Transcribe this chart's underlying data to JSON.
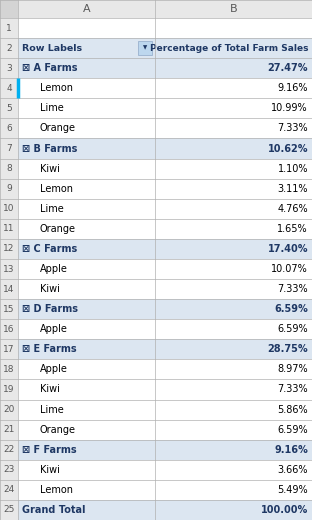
{
  "col_header_row": [
    "Row Labels",
    "Percentage of Total Farm Sales"
  ],
  "rows": [
    {
      "label": "⊠ A Farms",
      "value": "27.47%",
      "is_farm": true,
      "indent": false
    },
    {
      "label": "Lemon",
      "value": "9.16%",
      "is_farm": false,
      "indent": true
    },
    {
      "label": "Lime",
      "value": "10.99%",
      "is_farm": false,
      "indent": true
    },
    {
      "label": "Orange",
      "value": "7.33%",
      "is_farm": false,
      "indent": true
    },
    {
      "label": "⊠ B Farms",
      "value": "10.62%",
      "is_farm": true,
      "indent": false
    },
    {
      "label": "Kiwi",
      "value": "1.10%",
      "is_farm": false,
      "indent": true
    },
    {
      "label": "Lemon",
      "value": "3.11%",
      "is_farm": false,
      "indent": true
    },
    {
      "label": "Lime",
      "value": "4.76%",
      "is_farm": false,
      "indent": true
    },
    {
      "label": "Orange",
      "value": "1.65%",
      "is_farm": false,
      "indent": true
    },
    {
      "label": "⊠ C Farms",
      "value": "17.40%",
      "is_farm": true,
      "indent": false
    },
    {
      "label": "Apple",
      "value": "10.07%",
      "is_farm": false,
      "indent": true
    },
    {
      "label": "Kiwi",
      "value": "7.33%",
      "is_farm": false,
      "indent": true
    },
    {
      "label": "⊠ D Farms",
      "value": "6.59%",
      "is_farm": true,
      "indent": false
    },
    {
      "label": "Apple",
      "value": "6.59%",
      "is_farm": false,
      "indent": true
    },
    {
      "label": "⊠ E Farms",
      "value": "28.75%",
      "is_farm": true,
      "indent": false
    },
    {
      "label": "Apple",
      "value": "8.97%",
      "is_farm": false,
      "indent": true
    },
    {
      "label": "Kiwi",
      "value": "7.33%",
      "is_farm": false,
      "indent": true
    },
    {
      "label": "Lime",
      "value": "5.86%",
      "is_farm": false,
      "indent": true
    },
    {
      "label": "Orange",
      "value": "6.59%",
      "is_farm": false,
      "indent": true
    },
    {
      "label": "⊠ F Farms",
      "value": "9.16%",
      "is_farm": true,
      "indent": false
    },
    {
      "label": "Kiwi",
      "value": "3.66%",
      "is_farm": false,
      "indent": true
    },
    {
      "label": "Lemon",
      "value": "5.49%",
      "is_farm": false,
      "indent": true
    },
    {
      "label": "Grand Total",
      "value": "100.00%",
      "is_farm": false,
      "indent": false,
      "is_grand": true
    }
  ],
  "bg_col_header": "#dce6f1",
  "bg_farm": "#dce6f1",
  "bg_white": "#ffffff",
  "bg_row_num": "#e8e8e8",
  "bg_col_letter": "#e8e8e8",
  "bg_corner": "#d4d4d4",
  "text_farm_color": "#1f3864",
  "text_normal_color": "#000000",
  "text_header_color": "#1f3864",
  "text_rownum_color": "#595959",
  "grid_color": "#b0b0b0",
  "highlight_color": "#00b0f0",
  "filter_btn_color": "#bdd7ee"
}
